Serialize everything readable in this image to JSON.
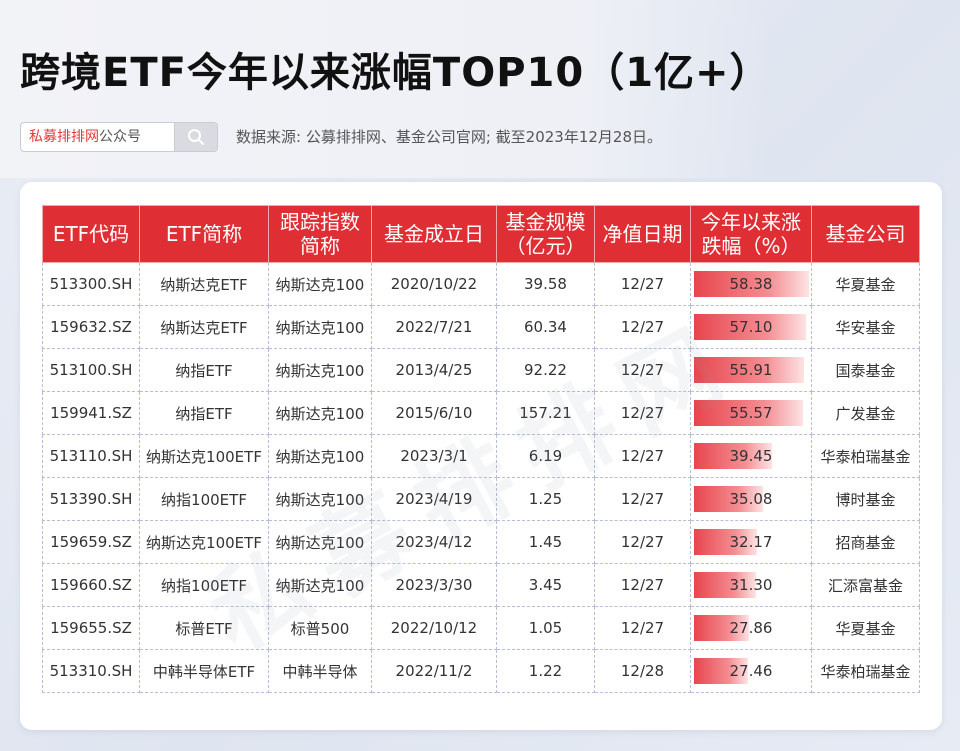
{
  "title": "跨境ETF今年以来涨幅TOP10（1亿+）",
  "search": {
    "brand_red": "私募排排网",
    "brand_grey": "公众号",
    "icon": "search-icon"
  },
  "source": "数据来源: 公募排排网、基金公司官网; 截至2023年12月28日。",
  "watermark": "私募排排网",
  "table": {
    "headers": [
      "ETF代码",
      "ETF简称",
      "跟踪指数简称",
      "基金成立日",
      "基金规模（亿元）",
      "净值日期",
      "今年以来涨跌幅（%）",
      "基金公司"
    ],
    "max_pct": 58.38,
    "rows": [
      {
        "code": "513300.SH",
        "name": "纳斯达克ETF",
        "index": "纳斯达克100",
        "inception": "2020/10/22",
        "size": "39.58",
        "nav_date": "12/27",
        "pct": "58.38",
        "company": "华夏基金"
      },
      {
        "code": "159632.SZ",
        "name": "纳斯达克ETF",
        "index": "纳斯达克100",
        "inception": "2022/7/21",
        "size": "60.34",
        "nav_date": "12/27",
        "pct": "57.10",
        "company": "华安基金"
      },
      {
        "code": "513100.SH",
        "name": "纳指ETF",
        "index": "纳斯达克100",
        "inception": "2013/4/25",
        "size": "92.22",
        "nav_date": "12/27",
        "pct": "55.91",
        "company": "国泰基金"
      },
      {
        "code": "159941.SZ",
        "name": "纳指ETF",
        "index": "纳斯达克100",
        "inception": "2015/6/10",
        "size": "157.21",
        "nav_date": "12/27",
        "pct": "55.57",
        "company": "广发基金"
      },
      {
        "code": "513110.SH",
        "name": "纳斯达克100ETF",
        "index": "纳斯达克100",
        "inception": "2023/3/1",
        "size": "6.19",
        "nav_date": "12/27",
        "pct": "39.45",
        "company": "华泰柏瑞基金"
      },
      {
        "code": "513390.SH",
        "name": "纳指100ETF",
        "index": "纳斯达克100",
        "inception": "2023/4/19",
        "size": "1.25",
        "nav_date": "12/27",
        "pct": "35.08",
        "company": "博时基金"
      },
      {
        "code": "159659.SZ",
        "name": "纳斯达克100ETF",
        "index": "纳斯达克100",
        "inception": "2023/4/12",
        "size": "1.45",
        "nav_date": "12/27",
        "pct": "32.17",
        "company": "招商基金"
      },
      {
        "code": "159660.SZ",
        "name": "纳指100ETF",
        "index": "纳斯达克100",
        "inception": "2023/3/30",
        "size": "3.45",
        "nav_date": "12/27",
        "pct": "31.30",
        "company": "汇添富基金"
      },
      {
        "code": "159655.SZ",
        "name": "标普ETF",
        "index": "标普500",
        "inception": "2022/10/12",
        "size": "1.05",
        "nav_date": "12/27",
        "pct": "27.86",
        "company": "华夏基金"
      },
      {
        "code": "513310.SH",
        "name": "中韩半导体ETF",
        "index": "中韩半导体",
        "inception": "2022/11/2",
        "size": "1.22",
        "nav_date": "12/28",
        "pct": "27.46",
        "company": "华泰柏瑞基金"
      }
    ]
  }
}
